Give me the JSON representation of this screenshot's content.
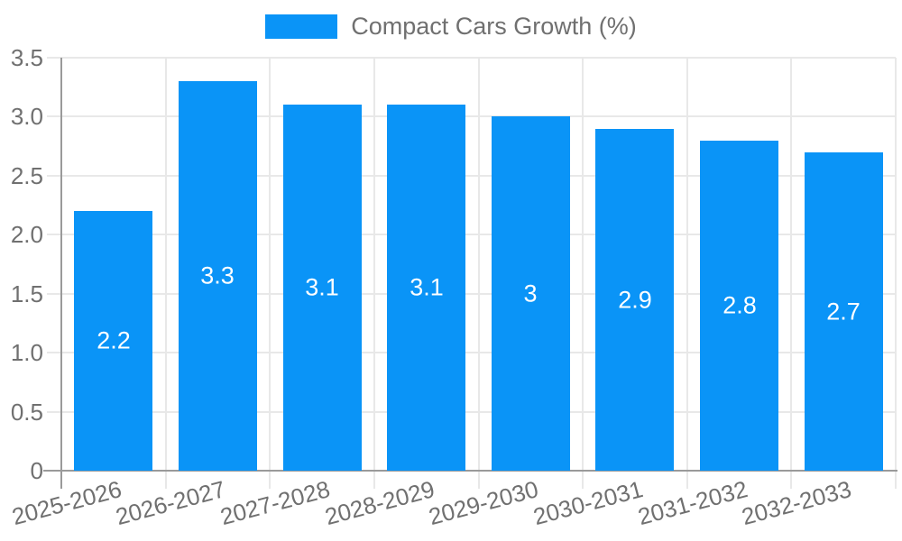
{
  "legend": {
    "label": "Compact Cars Growth (%)"
  },
  "chart_data": {
    "type": "bar",
    "title": "",
    "xlabel": "",
    "ylabel": "",
    "categories": [
      "2025-2026",
      "2026-2027",
      "2027-2028",
      "2028-2029",
      "2029-2030",
      "2030-2031",
      "2031-2032",
      "2032-2033"
    ],
    "series": [
      {
        "name": "Compact Cars Growth (%)",
        "values": [
          2.2,
          3.3,
          3.1,
          3.1,
          3,
          2.9,
          2.8,
          2.7
        ],
        "data_labels": [
          "2.2",
          "3.3",
          "3.1",
          "3.1",
          "3",
          "2.9",
          "2.8",
          "2.7"
        ]
      }
    ],
    "ylim": [
      0,
      3.5
    ],
    "ytick_labels": [
      "0",
      "0.5",
      "1.0",
      "1.5",
      "2.0",
      "2.5",
      "3.0",
      "3.5"
    ],
    "grid": true,
    "legend_position": "top",
    "colors": {
      "bar": "#0A94F7",
      "grid": "#E8E8E8",
      "axis": "#9A9A9A",
      "tick_text": "#707070",
      "bar_label_text": "#FFFFFF",
      "background": "#FFFFFF"
    }
  }
}
